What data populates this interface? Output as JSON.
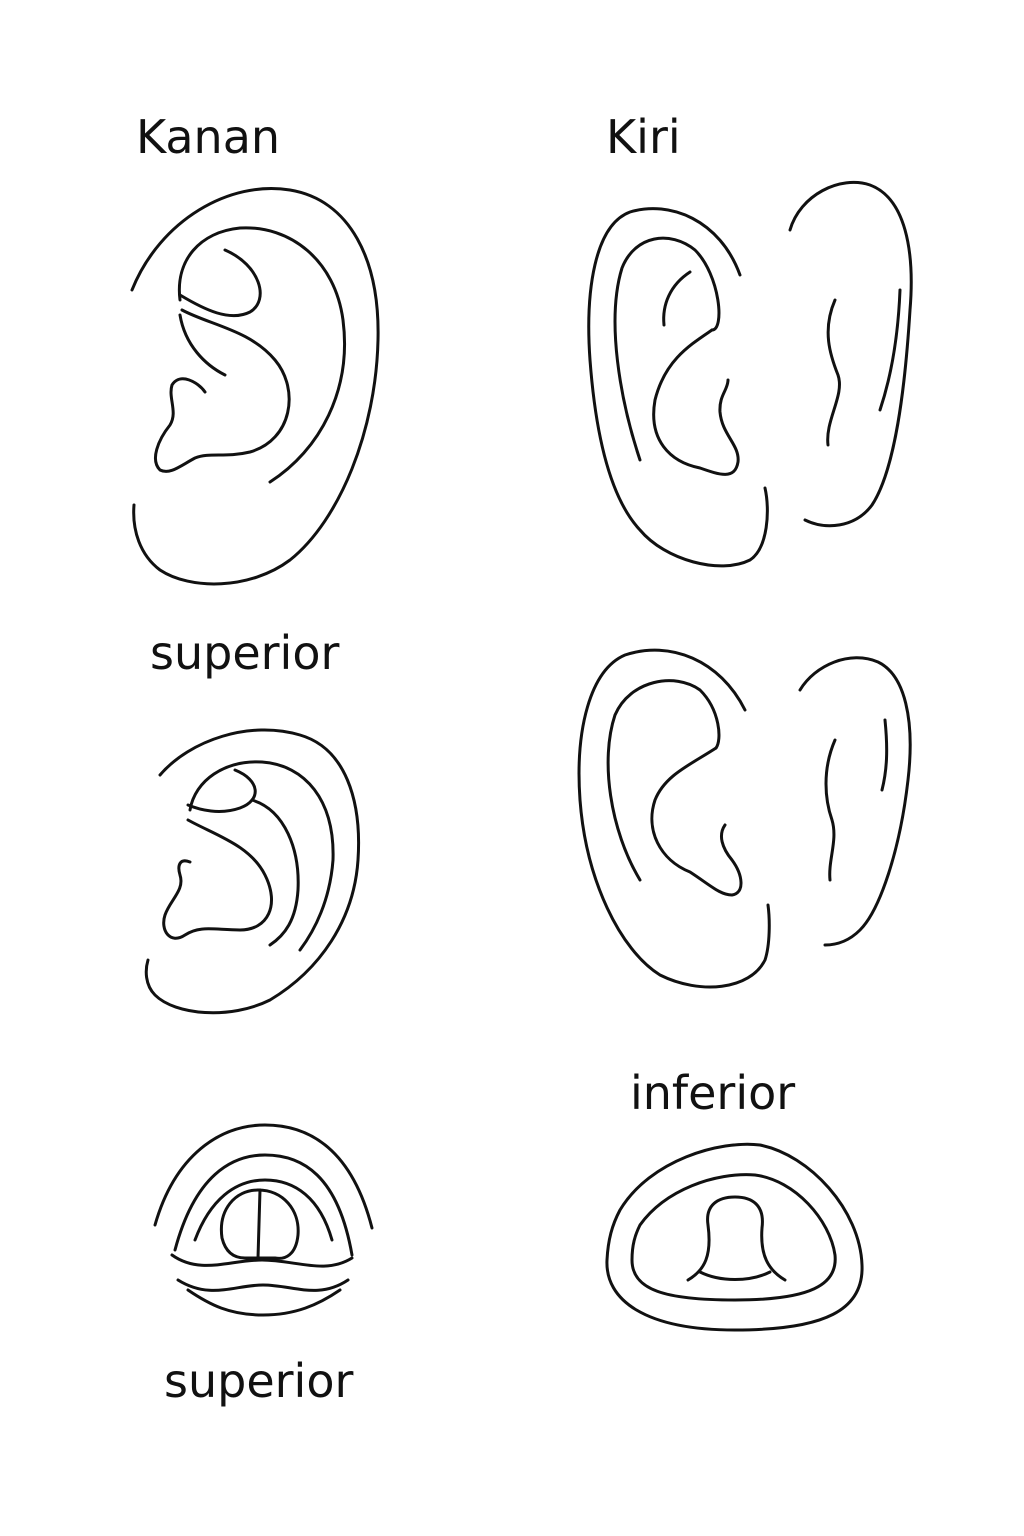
{
  "labels": {
    "right": "Kanan",
    "left": "Kiri",
    "superior_mid": "superior",
    "inferior": "inferior",
    "superior_bottom": "superior"
  },
  "colors": {
    "stroke": "#111111",
    "background": "#ffffff"
  }
}
